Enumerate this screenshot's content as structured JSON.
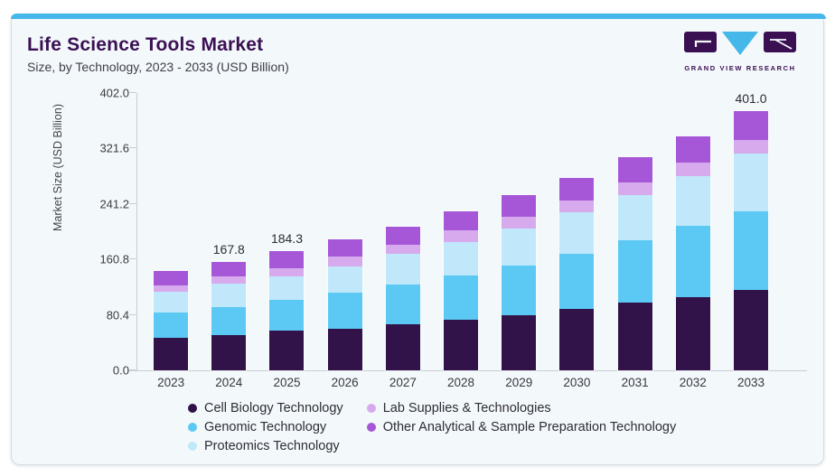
{
  "header": {
    "title": "Life Science Tools Market",
    "subtitle": "Size, by Technology, 2023 - 2033 (USD Billion)"
  },
  "branding": {
    "name": "GRAND VIEW RESEARCH",
    "logo_icon": "gvr-logo",
    "brand_purple": "#3b1053",
    "brand_cyan": "#45b7e8"
  },
  "colors": {
    "accent_bar": "#45b7e8",
    "card_background": "#f3f8fb",
    "axis_line": "#c9ced5"
  },
  "chart_data": {
    "type": "bar",
    "stacked": true,
    "title": "Life Science Tools Market",
    "subtitle": "Size, by Technology, 2023 - 2033 (USD Billion)",
    "ylabel": "Market Size (USD Billion)",
    "xlabel": "",
    "ylim": [
      0,
      402
    ],
    "ytick_labels": [
      "0.0",
      "80.4",
      "160.8",
      "241.2",
      "321.6",
      "402.0"
    ],
    "grid": false,
    "legend_position": "bottom",
    "categories": [
      "2023",
      "2024",
      "2025",
      "2026",
      "2027",
      "2028",
      "2029",
      "2030",
      "2031",
      "2032",
      "2033"
    ],
    "series": [
      {
        "name": "Cell Biology Technology",
        "color": "#321349",
        "values": [
          49.8,
          54.0,
          61.0,
          64.0,
          70.8,
          77.8,
          85.6,
          94.9,
          104.3,
          113.5,
          123.9
        ]
      },
      {
        "name": "Genomic Technology",
        "color": "#5cc9f4",
        "values": [
          39.1,
          44.1,
          48.0,
          56.0,
          62.3,
          68.4,
          76.8,
          84.7,
          96.3,
          109.4,
          122.3
        ]
      },
      {
        "name": "Proteomics Technology",
        "color": "#c0e8fa",
        "values": [
          32.5,
          36.3,
          36.5,
          40.6,
          46.6,
          52.5,
          56.8,
          64.2,
          69.8,
          76.8,
          88.5
        ]
      },
      {
        "name": "Lab Supplies & Technologies",
        "color": "#d6aaed",
        "values": [
          9.4,
          10.3,
          13.0,
          15.5,
          14.4,
          17.3,
          17.7,
          18.6,
          20.0,
          20.9,
          20.9
        ]
      },
      {
        "name": "Other Analytical & Sample Preparation Technology",
        "color": "#a657d7",
        "values": [
          23.2,
          23.1,
          25.8,
          25.9,
          27.7,
          29.3,
          33.9,
          34.9,
          39.5,
          40.5,
          45.4
        ]
      }
    ],
    "totals": [
      154.0,
      167.8,
      184.3,
      202.0,
      221.8,
      245.3,
      270.8,
      297.3,
      329.9,
      361.1,
      401.0
    ],
    "bar_labels": {
      "2024": "167.8",
      "2025": "184.3",
      "2033": "401.0"
    }
  }
}
